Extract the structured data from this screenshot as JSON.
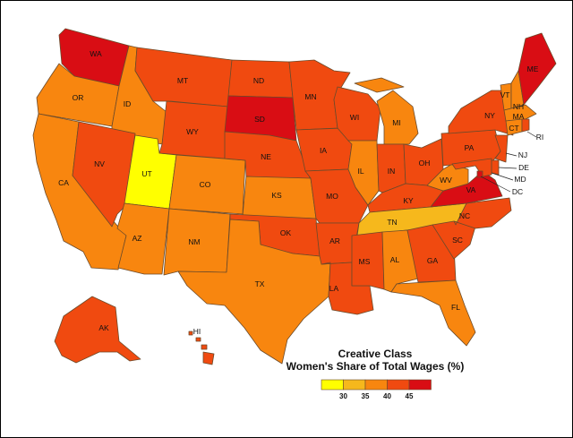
{
  "legend": {
    "title_line1": "Creative Class",
    "title_line2": "Women's Share of Total Wages (%)",
    "bins": [
      {
        "color": "#ffff00"
      },
      {
        "color": "#f6b81c"
      },
      {
        "color": "#f8860f"
      },
      {
        "color": "#f04a10"
      },
      {
        "color": "#d90d14"
      }
    ],
    "ticks": [
      "30",
      "35",
      "40",
      "45"
    ]
  },
  "states": [
    {
      "abbr": "WA",
      "bin": 4
    },
    {
      "abbr": "OR",
      "bin": 2
    },
    {
      "abbr": "CA",
      "bin": 2
    },
    {
      "abbr": "ID",
      "bin": 2
    },
    {
      "abbr": "NV",
      "bin": 3
    },
    {
      "abbr": "UT",
      "bin": 0
    },
    {
      "abbr": "AZ",
      "bin": 2
    },
    {
      "abbr": "MT",
      "bin": 3
    },
    {
      "abbr": "WY",
      "bin": 3
    },
    {
      "abbr": "CO",
      "bin": 2
    },
    {
      "abbr": "NM",
      "bin": 2
    },
    {
      "abbr": "ND",
      "bin": 3
    },
    {
      "abbr": "SD",
      "bin": 4
    },
    {
      "abbr": "NE",
      "bin": 3
    },
    {
      "abbr": "KS",
      "bin": 2
    },
    {
      "abbr": "OK",
      "bin": 3
    },
    {
      "abbr": "TX",
      "bin": 2
    },
    {
      "abbr": "MN",
      "bin": 3
    },
    {
      "abbr": "IA",
      "bin": 3
    },
    {
      "abbr": "MO",
      "bin": 3
    },
    {
      "abbr": "AR",
      "bin": 3
    },
    {
      "abbr": "LA",
      "bin": 3
    },
    {
      "abbr": "WI",
      "bin": 3
    },
    {
      "abbr": "IL",
      "bin": 2
    },
    {
      "abbr": "MI",
      "bin": 2
    },
    {
      "abbr": "IN",
      "bin": 3
    },
    {
      "abbr": "OH",
      "bin": 3
    },
    {
      "abbr": "KY",
      "bin": 3
    },
    {
      "abbr": "TN",
      "bin": 1
    },
    {
      "abbr": "MS",
      "bin": 3
    },
    {
      "abbr": "AL",
      "bin": 2
    },
    {
      "abbr": "GA",
      "bin": 3
    },
    {
      "abbr": "FL",
      "bin": 2
    },
    {
      "abbr": "SC",
      "bin": 3
    },
    {
      "abbr": "NC",
      "bin": 3
    },
    {
      "abbr": "VA",
      "bin": 4
    },
    {
      "abbr": "WV",
      "bin": 2
    },
    {
      "abbr": "PA",
      "bin": 3
    },
    {
      "abbr": "NY",
      "bin": 3
    },
    {
      "abbr": "VT",
      "bin": 2
    },
    {
      "abbr": "NH",
      "bin": 2
    },
    {
      "abbr": "ME",
      "bin": 4
    },
    {
      "abbr": "MA",
      "bin": 2
    },
    {
      "abbr": "CT",
      "bin": 2
    },
    {
      "abbr": "RI",
      "bin": 3
    },
    {
      "abbr": "NJ",
      "bin": 3
    },
    {
      "abbr": "DE",
      "bin": 3
    },
    {
      "abbr": "MD",
      "bin": 3
    },
    {
      "abbr": "DC",
      "bin": 4
    },
    {
      "abbr": "AK",
      "bin": 3
    },
    {
      "abbr": "HI",
      "bin": 3
    }
  ]
}
